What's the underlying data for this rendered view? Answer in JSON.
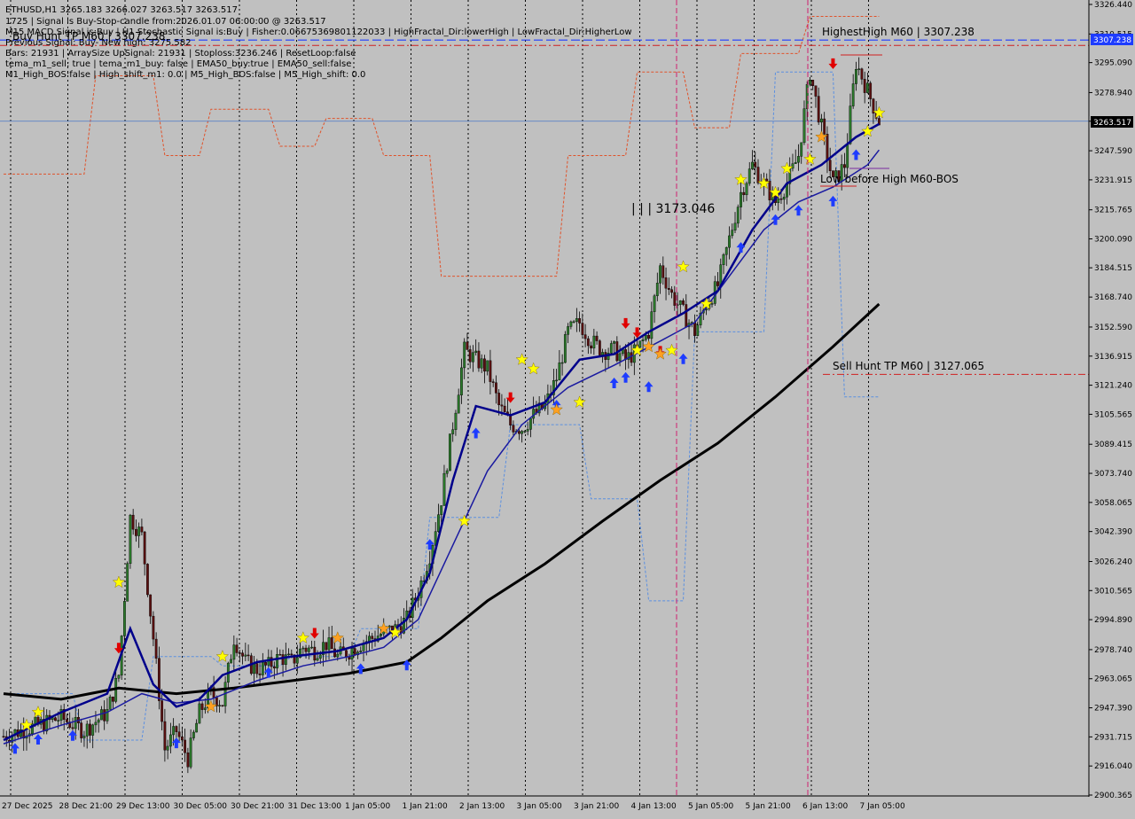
{
  "window": {
    "header_lines": [
      "ETHUSD,H1  3265.183 3266.027 3263.517 3263.517",
      "1725 | Signal is Buy-Stop-candle from:2026.01.07 06:00:00 @ 3263.517",
      "M15 MACD Signal is:Buy | H1 Stochastic Signal is:Buy | Fisher:0.06675369801122033 | HighFractal_Dir:lowerHigh | LowFractal_Dir:HigherLow",
      "Buy Hunt TP M60 | 3307.238",
      "Previous Signal: Buy- New high: 3275.582",
      "Bars: 21931 | ArraySize UpSignal: 21931 | Stoploss:3236.246 | ResetLoop:false",
      "tema_m1_sell: true | tema_m1_buy: false | EMA50_buy:true | EMA50_sell:false",
      "M1_High_BOS:false | High_shift_m1: 0.0 | M5_High_BOS:false | M5_High_shift: 0.0"
    ]
  },
  "colors": {
    "background": "#c0c0c0",
    "grid": "#000000",
    "bull": "#2b7a2b",
    "bear": "#5a1010",
    "ma_fast": "#00008b",
    "ma_mid": "#1a1aa0",
    "ma_slow": "#000000",
    "channel_upper": "#e0522a",
    "channel_lower": "#5b8fe0",
    "buy_arrow": "#1e3cff",
    "sell_arrow": "#e00000",
    "star": "#ffff00",
    "star_orange": "#ffa020",
    "tp_buy_line": "#1e3cff",
    "tp_sell_line": "#d02020",
    "bos_line": "#7a2aa0",
    "current_price_line": "#4a78c8"
  },
  "annotations": {
    "highest_high": "HighestHigh   M60 | 3307.238",
    "sell_hunt": "Sell Hunt TP M60 | 3127.065",
    "low_before_high": "Low before High    M60-BOS",
    "mid_label": "| | | 3173.046"
  },
  "price_tags": {
    "buy_tp": "3307.238",
    "current": "3263.517"
  },
  "chart_data": {
    "type": "candlestick",
    "symbol": "ETHUSD",
    "timeframe": "H1",
    "ylim": [
      2900.365,
      3326.44
    ],
    "y_ticks": [
      3326.44,
      3310.515,
      3295.09,
      3278.94,
      3263.515,
      3247.59,
      3231.915,
      3215.765,
      3200.09,
      3184.515,
      3168.74,
      3152.59,
      3136.915,
      3121.24,
      3105.565,
      3089.415,
      3073.74,
      3058.065,
      3042.39,
      3026.24,
      3010.565,
      2994.89,
      2978.74,
      2963.065,
      2947.39,
      2931.715,
      2916.04,
      2900.365
    ],
    "x_labels": [
      "27 Dec 2025",
      "28 Dec 21:00",
      "29 Dec 13:00",
      "30 Dec 05:00",
      "30 Dec 21:00",
      "31 Dec 13:00",
      "1 Jan 05:00",
      "1 Jan 21:00",
      "2 Jan 13:00",
      "3 Jan 05:00",
      "3 Jan 21:00",
      "4 Jan 13:00",
      "5 Jan 05:00",
      "5 Jan 21:00",
      "6 Jan 13:00",
      "7 Jan 05:00"
    ],
    "close_path": [
      [
        0,
        2932
      ],
      [
        6,
        2938
      ],
      [
        10,
        2942
      ],
      [
        14,
        2935
      ],
      [
        18,
        2945
      ],
      [
        20,
        2965
      ],
      [
        22,
        3050
      ],
      [
        24,
        3040
      ],
      [
        26,
        2985
      ],
      [
        28,
        2925
      ],
      [
        30,
        2935
      ],
      [
        32,
        2920
      ],
      [
        34,
        2945
      ],
      [
        36,
        2955
      ],
      [
        38,
        2950
      ],
      [
        40,
        2985
      ],
      [
        42,
        2972
      ],
      [
        44,
        2968
      ],
      [
        46,
        2970
      ],
      [
        48,
        2975
      ],
      [
        50,
        2972
      ],
      [
        52,
        2980
      ],
      [
        54,
        2978
      ],
      [
        56,
        2982
      ],
      [
        58,
        2975
      ],
      [
        60,
        2978
      ],
      [
        62,
        2982
      ],
      [
        64,
        2985
      ],
      [
        66,
        2988
      ],
      [
        68,
        2990
      ],
      [
        70,
        2995
      ],
      [
        72,
        3010
      ],
      [
        74,
        3030
      ],
      [
        76,
        3060
      ],
      [
        78,
        3100
      ],
      [
        80,
        3140
      ],
      [
        82,
        3135
      ],
      [
        84,
        3130
      ],
      [
        86,
        3110
      ],
      [
        88,
        3100
      ],
      [
        90,
        3098
      ],
      [
        92,
        3105
      ],
      [
        94,
        3110
      ],
      [
        96,
        3125
      ],
      [
        98,
        3150
      ],
      [
        100,
        3155
      ],
      [
        102,
        3145
      ],
      [
        104,
        3140
      ],
      [
        106,
        3140
      ],
      [
        108,
        3135
      ],
      [
        110,
        3140
      ],
      [
        112,
        3150
      ],
      [
        114,
        3185
      ],
      [
        116,
        3170
      ],
      [
        118,
        3160
      ],
      [
        120,
        3150
      ],
      [
        122,
        3165
      ],
      [
        124,
        3175
      ],
      [
        126,
        3200
      ],
      [
        128,
        3225
      ],
      [
        130,
        3240
      ],
      [
        132,
        3230
      ],
      [
        134,
        3220
      ],
      [
        136,
        3230
      ],
      [
        138,
        3245
      ],
      [
        140,
        3290
      ],
      [
        142,
        3260
      ],
      [
        144,
        3230
      ],
      [
        146,
        3240
      ],
      [
        148,
        3295
      ],
      [
        150,
        3280
      ],
      [
        152,
        3263.5
      ]
    ],
    "ma_fast": [
      [
        0,
        2930
      ],
      [
        10,
        2945
      ],
      [
        18,
        2955
      ],
      [
        22,
        2990
      ],
      [
        26,
        2960
      ],
      [
        30,
        2948
      ],
      [
        34,
        2952
      ],
      [
        38,
        2965
      ],
      [
        44,
        2972
      ],
      [
        50,
        2975
      ],
      [
        58,
        2978
      ],
      [
        66,
        2985
      ],
      [
        70,
        2995
      ],
      [
        74,
        3020
      ],
      [
        78,
        3070
      ],
      [
        82,
        3110
      ],
      [
        88,
        3105
      ],
      [
        94,
        3112
      ],
      [
        100,
        3135
      ],
      [
        106,
        3138
      ],
      [
        112,
        3150
      ],
      [
        118,
        3160
      ],
      [
        124,
        3172
      ],
      [
        130,
        3205
      ],
      [
        136,
        3230
      ],
      [
        142,
        3240
      ],
      [
        148,
        3255
      ],
      [
        152,
        3262
      ]
    ],
    "ma_mid": [
      [
        0,
        2928
      ],
      [
        10,
        2938
      ],
      [
        18,
        2945
      ],
      [
        24,
        2955
      ],
      [
        30,
        2950
      ],
      [
        36,
        2952
      ],
      [
        44,
        2962
      ],
      [
        52,
        2970
      ],
      [
        60,
        2975
      ],
      [
        66,
        2980
      ],
      [
        72,
        2995
      ],
      [
        78,
        3035
      ],
      [
        84,
        3075
      ],
      [
        90,
        3100
      ],
      [
        98,
        3120
      ],
      [
        106,
        3132
      ],
      [
        114,
        3145
      ],
      [
        120,
        3155
      ],
      [
        126,
        3180
      ],
      [
        132,
        3205
      ],
      [
        138,
        3220
      ],
      [
        144,
        3228
      ],
      [
        150,
        3240
      ],
      [
        152,
        3248
      ]
    ],
    "ma_slow": [
      [
        0,
        2955
      ],
      [
        10,
        2952
      ],
      [
        20,
        2958
      ],
      [
        30,
        2955
      ],
      [
        40,
        2958
      ],
      [
        50,
        2962
      ],
      [
        60,
        2966
      ],
      [
        70,
        2972
      ],
      [
        76,
        2985
      ],
      [
        84,
        3005
      ],
      [
        94,
        3025
      ],
      [
        104,
        3048
      ],
      [
        114,
        3070
      ],
      [
        124,
        3090
      ],
      [
        134,
        3115
      ],
      [
        144,
        3142
      ],
      [
        152,
        3165
      ]
    ],
    "channel_upper": [
      [
        0,
        3235
      ],
      [
        14,
        3235
      ],
      [
        16,
        3288
      ],
      [
        26,
        3288
      ],
      [
        28,
        3245
      ],
      [
        34,
        3245
      ],
      [
        36,
        3270
      ],
      [
        46,
        3270
      ],
      [
        48,
        3250
      ],
      [
        54,
        3250
      ],
      [
        56,
        3265
      ],
      [
        64,
        3265
      ],
      [
        66,
        3245
      ],
      [
        74,
        3245
      ],
      [
        76,
        3180
      ],
      [
        96,
        3180
      ],
      [
        98,
        3245
      ],
      [
        108,
        3245
      ],
      [
        110,
        3290
      ],
      [
        118,
        3290
      ],
      [
        120,
        3260
      ],
      [
        126,
        3260
      ],
      [
        128,
        3300
      ],
      [
        138,
        3300
      ],
      [
        140,
        3320
      ],
      [
        152,
        3320
      ]
    ],
    "channel_lower": [
      [
        0,
        2955
      ],
      [
        12,
        2955
      ],
      [
        14,
        2930
      ],
      [
        24,
        2930
      ],
      [
        26,
        2975
      ],
      [
        36,
        2975
      ],
      [
        38,
        2970
      ],
      [
        48,
        2970
      ],
      [
        50,
        2975
      ],
      [
        60,
        2975
      ],
      [
        62,
        2990
      ],
      [
        72,
        2990
      ],
      [
        74,
        3050
      ],
      [
        86,
        3050
      ],
      [
        88,
        3100
      ],
      [
        100,
        3100
      ],
      [
        102,
        3060
      ],
      [
        110,
        3060
      ],
      [
        112,
        3005
      ],
      [
        118,
        3005
      ],
      [
        120,
        3150
      ],
      [
        132,
        3150
      ],
      [
        134,
        3290
      ],
      [
        144,
        3290
      ],
      [
        146,
        3115
      ],
      [
        152,
        3115
      ]
    ],
    "buy_arrows": [
      [
        2,
        2925
      ],
      [
        6,
        2930
      ],
      [
        12,
        2932
      ],
      [
        30,
        2928
      ],
      [
        46,
        2966
      ],
      [
        62,
        2968
      ],
      [
        70,
        2970
      ],
      [
        74,
        3035
      ],
      [
        82,
        3095
      ],
      [
        96,
        3110
      ],
      [
        106,
        3122
      ],
      [
        108,
        3125
      ],
      [
        112,
        3120
      ],
      [
        118,
        3135
      ],
      [
        128,
        3195
      ],
      [
        134,
        3210
      ],
      [
        138,
        3215
      ],
      [
        144,
        3220
      ],
      [
        148,
        3245
      ]
    ],
    "sell_arrows": [
      [
        20,
        2980
      ],
      [
        54,
        2988
      ],
      [
        88,
        3115
      ],
      [
        108,
        3155
      ],
      [
        110,
        3150
      ],
      [
        114,
        3140
      ],
      [
        144,
        3295
      ]
    ],
    "stars": [
      [
        4,
        2938
      ],
      [
        6,
        2945
      ],
      [
        20,
        3015
      ],
      [
        38,
        2975
      ],
      [
        52,
        2985
      ],
      [
        68,
        2988
      ],
      [
        80,
        3048
      ],
      [
        90,
        3135
      ],
      [
        92,
        3130
      ],
      [
        100,
        3112
      ],
      [
        110,
        3140
      ],
      [
        116,
        3140
      ],
      [
        118,
        3185
      ],
      [
        122,
        3165
      ],
      [
        128,
        3232
      ],
      [
        132,
        3230
      ],
      [
        134,
        3225
      ],
      [
        136,
        3238
      ],
      [
        140,
        3243
      ],
      [
        150,
        3258
      ],
      [
        152,
        3268
      ]
    ],
    "stars_orange": [
      [
        36,
        2948
      ],
      [
        58,
        2985
      ],
      [
        66,
        2990
      ],
      [
        96,
        3108
      ],
      [
        112,
        3142
      ],
      [
        114,
        3138
      ],
      [
        142,
        3255
      ]
    ],
    "hlines": {
      "buy_tp": 3307.238,
      "sell_tp": 3127.065,
      "current": 3263.517
    }
  }
}
